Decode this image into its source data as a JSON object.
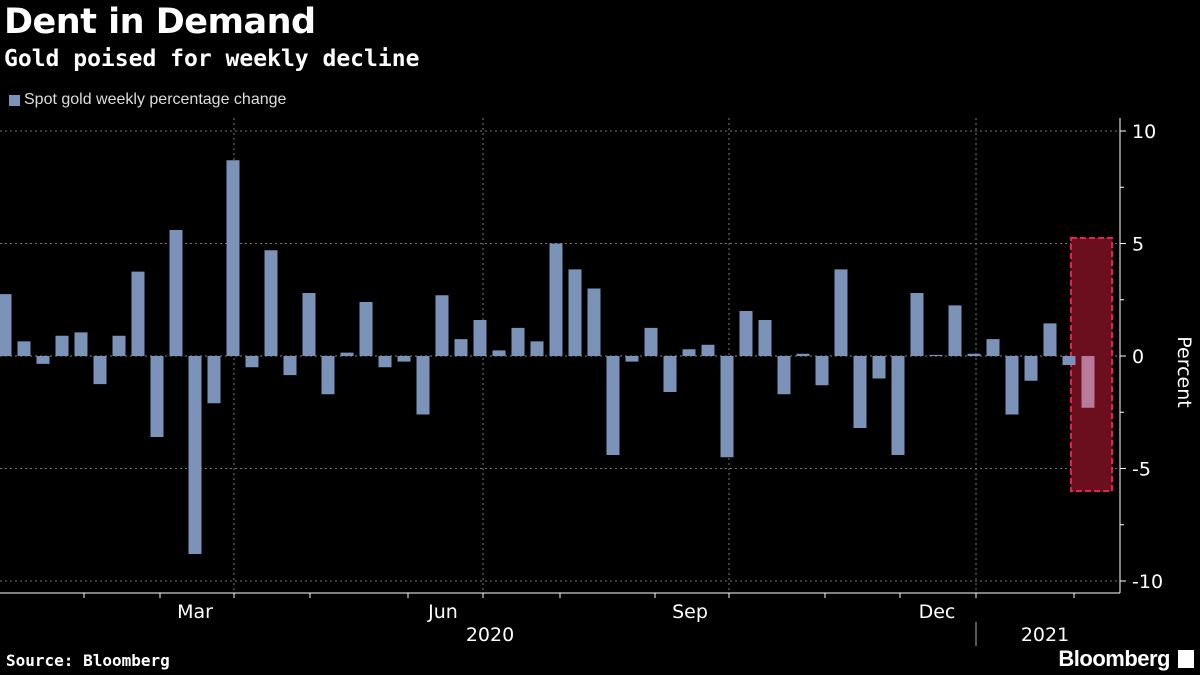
{
  "header": {
    "title": "Dent in Demand",
    "subtitle": "Gold poised for weekly decline"
  },
  "legend": {
    "label": "Spot gold weekly percentage change"
  },
  "footer": {
    "source": "Source: Bloomberg",
    "brand": "Bloomberg"
  },
  "colors": {
    "bar": "#7b93b8",
    "highlight_fill": "#6b0e1e",
    "highlight_border": "#e8204c",
    "highlight_bar": "#b77a9a"
  },
  "chart_data": {
    "type": "bar",
    "title": "Dent in Demand",
    "subtitle": "Gold poised for weekly decline",
    "ylabel": "Percent",
    "ylim": [
      -10,
      10
    ],
    "yticks": [
      10,
      5,
      0,
      -5,
      -10
    ],
    "x_month_labels": [
      "Mar",
      "Jun",
      "Sep",
      "Dec"
    ],
    "x_year_labels": [
      "2020",
      "2021"
    ],
    "series": [
      {
        "name": "Spot gold weekly percentage change",
        "values": [
          2.75,
          0.65,
          -0.35,
          0.9,
          1.05,
          -1.25,
          0.9,
          3.75,
          -3.6,
          5.6,
          -8.8,
          -2.1,
          8.7,
          -0.5,
          4.7,
          -0.85,
          2.8,
          -1.7,
          0.15,
          2.4,
          -0.5,
          -0.25,
          -2.6,
          2.7,
          0.75,
          1.6,
          0.25,
          1.25,
          0.65,
          5.0,
          3.85,
          3.0,
          -4.4,
          -0.25,
          1.25,
          -1.6,
          0.3,
          0.5,
          -4.5,
          2.0,
          1.6,
          -1.7,
          0.1,
          -1.3,
          3.85,
          -3.2,
          -1.0,
          -4.4,
          2.8,
          0.05,
          2.25,
          0.1,
          0.75,
          -2.6,
          -1.1,
          1.45,
          -0.4,
          -2.3
        ]
      }
    ],
    "highlighted_index": 57,
    "legend_position": "top-left",
    "grid": true
  }
}
